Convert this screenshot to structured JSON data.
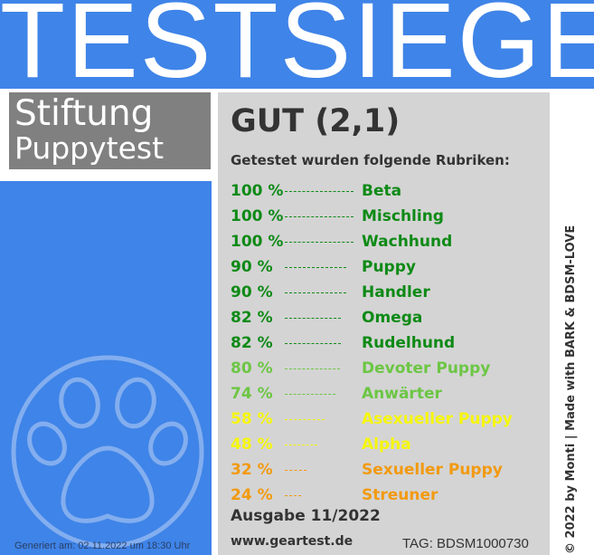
{
  "banner": {
    "title": "TESTSIEGER"
  },
  "organization": {
    "line1": "Stiftung",
    "line2": "Puppytest"
  },
  "result": {
    "grade": "GUT (2,1)",
    "intro": "Getestet wurden folgende Rubriken:",
    "rubrics": [
      {
        "percent": "100 %",
        "name": "Beta",
        "value": 100,
        "color": "#0e8a16"
      },
      {
        "percent": "100 %",
        "name": "Mischling",
        "value": 100,
        "color": "#0e8a16"
      },
      {
        "percent": "100 %",
        "name": "Wachhund",
        "value": 100,
        "color": "#0e8a16"
      },
      {
        "percent": "90 %",
        "name": "Puppy",
        "value": 90,
        "color": "#0e8a16"
      },
      {
        "percent": "90 %",
        "name": "Handler",
        "value": 90,
        "color": "#0e8a16"
      },
      {
        "percent": "82 %",
        "name": "Omega",
        "value": 82,
        "color": "#0e8a16"
      },
      {
        "percent": "82 %",
        "name": "Rudelhund",
        "value": 82,
        "color": "#0e8a16"
      },
      {
        "percent": "80 %",
        "name": "Devoter Puppy",
        "value": 80,
        "color": "#6cc644"
      },
      {
        "percent": "74 %",
        "name": "Anwärter",
        "value": 74,
        "color": "#6cc644"
      },
      {
        "percent": "58 %",
        "name": "Asexueller Puppy",
        "value": 58,
        "color": "#f6f60b"
      },
      {
        "percent": "48 %",
        "name": "Alpha",
        "value": 48,
        "color": "#f6f60b"
      },
      {
        "percent": "32 %",
        "name": "Sexueller Puppy",
        "value": 32,
        "color": "#f29a10"
      },
      {
        "percent": "24 %",
        "name": "Streuner",
        "value": 24,
        "color": "#f29a10"
      }
    ],
    "issue": "Ausgabe 11/2022",
    "website": "www.geartest.de",
    "tag": "TAG: BDSM1000730"
  },
  "footer": {
    "generated": "Generiert am: 02.11.2022 um 18:30 Uhr",
    "copyright": "© 2022 by Monti | Made with BARK & BDSM-LOVE"
  },
  "icons": {
    "emblem": "paw-icon"
  },
  "colors": {
    "brand_blue": "#3f84e8",
    "panel_gray": "#d4d4d4",
    "org_gray": "#808080"
  }
}
